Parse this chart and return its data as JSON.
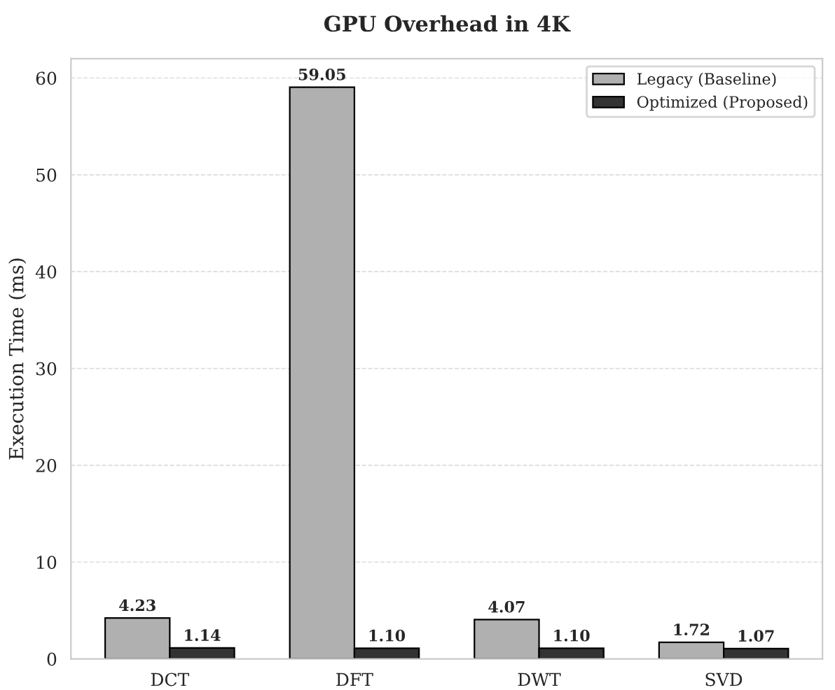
{
  "chart_data": {
    "type": "bar",
    "title": "GPU Overhead in 4K",
    "ylabel": "Execution Time (ms)",
    "categories": [
      "DCT",
      "DFT",
      "DWT",
      "SVD"
    ],
    "series": [
      {
        "name": "Legacy (Baseline)",
        "color": "#b0b0b0",
        "values": [
          4.23,
          59.05,
          4.07,
          1.72
        ],
        "value_labels": [
          "4.23",
          "59.05",
          "4.07",
          "1.72"
        ]
      },
      {
        "name": "Optimized (Proposed)",
        "color": "#333333",
        "values": [
          1.14,
          1.1,
          1.1,
          1.07
        ],
        "value_labels": [
          "1.14",
          "1.10",
          "1.10",
          "1.07"
        ]
      }
    ],
    "ylim": [
      0,
      62
    ],
    "yticks": [
      0,
      10,
      20,
      30,
      40,
      50,
      60
    ],
    "grid": "y",
    "legend": "top right"
  }
}
